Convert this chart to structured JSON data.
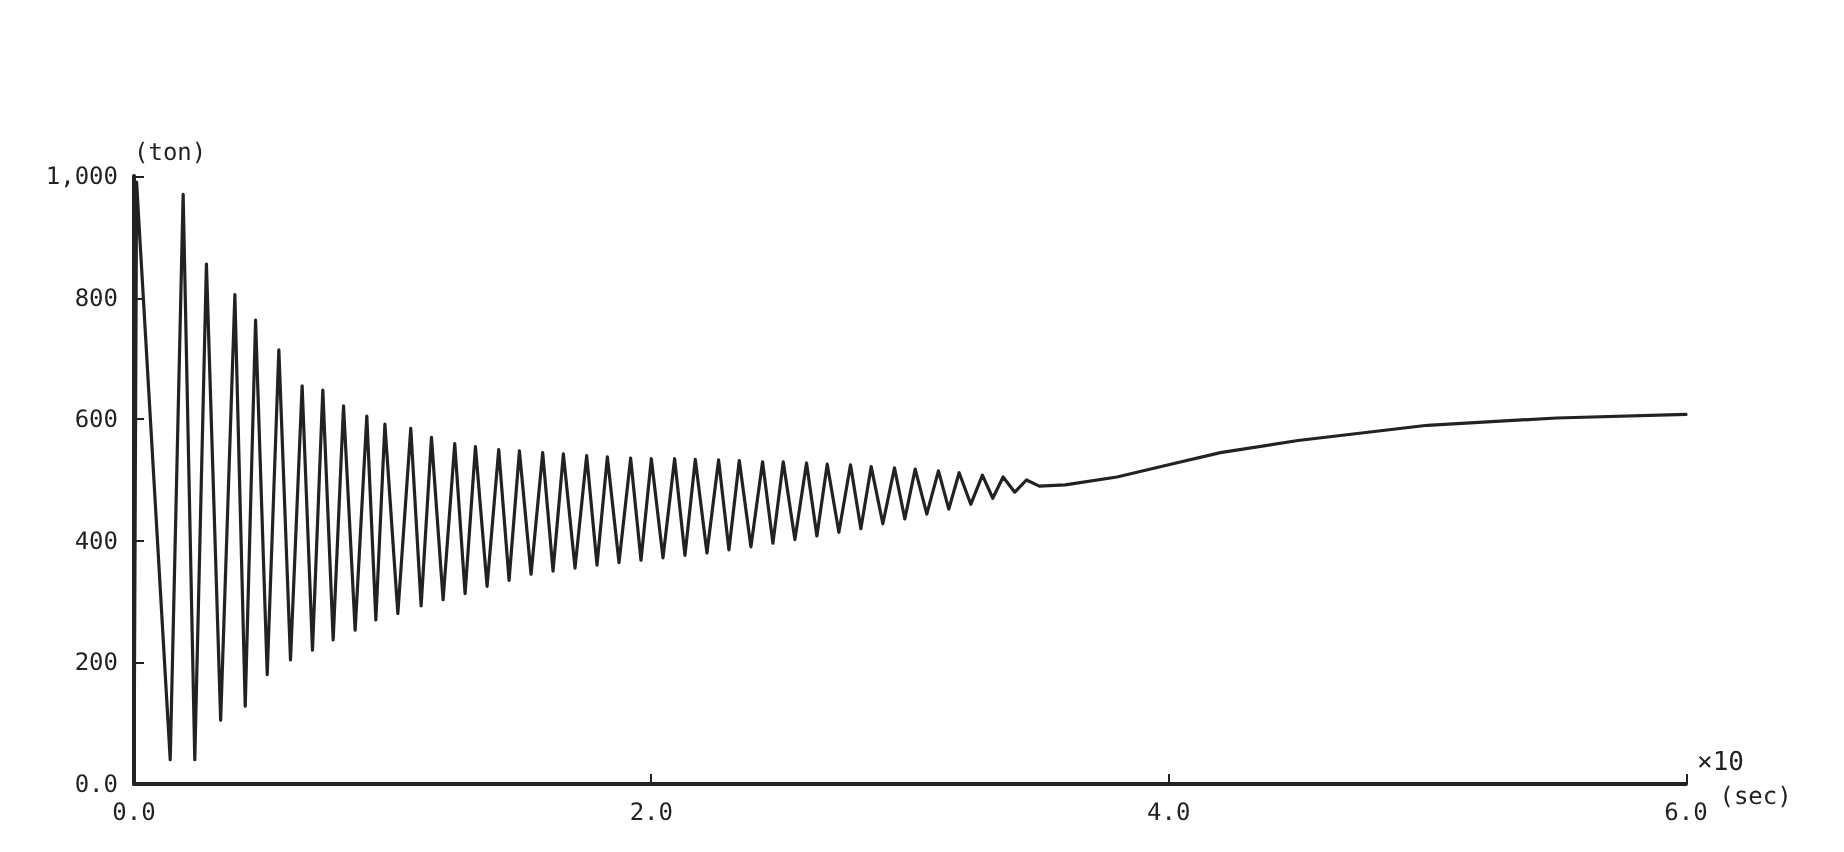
{
  "chart_data": {
    "type": "line",
    "xlabel": "(sec)",
    "ylabel": "(ton)",
    "annotations": [
      "×10"
    ],
    "xlim": [
      0,
      6
    ],
    "xticks": [
      {
        "value": 0,
        "label": "0.0"
      },
      {
        "value": 2,
        "label": "2.0"
      },
      {
        "value": 4,
        "label": "4.0"
      },
      {
        "value": 6,
        "label": "6.0"
      }
    ],
    "ylim": [
      0,
      1000
    ],
    "yticks": [
      {
        "value": 0,
        "label": "0.0"
      },
      200,
      400,
      600,
      800,
      {
        "value": 1000,
        "label": "1,000"
      }
    ],
    "grid": false,
    "marker": "none",
    "line_style": "solid",
    "series": [
      {
        "color": "#222222",
        "x": [
          0,
          0.01,
          0.14,
          0.19,
          0.235,
          0.28,
          0.335,
          0.39,
          0.43,
          0.47,
          0.515,
          0.56,
          0.605,
          0.65,
          0.69,
          0.73,
          0.77,
          0.81,
          0.855,
          0.9,
          0.935,
          0.97,
          1.02,
          1.07,
          1.11,
          1.15,
          1.195,
          1.24,
          1.28,
          1.32,
          1.365,
          1.41,
          1.45,
          1.49,
          1.535,
          1.58,
          1.62,
          1.66,
          1.705,
          1.75,
          1.79,
          1.83,
          1.875,
          1.92,
          1.96,
          2.0,
          2.045,
          2.09,
          2.13,
          2.17,
          2.215,
          2.26,
          2.3,
          2.34,
          2.385,
          2.43,
          2.47,
          2.51,
          2.555,
          2.6,
          2.64,
          2.68,
          2.725,
          2.77,
          2.81,
          2.85,
          2.895,
          2.94,
          2.98,
          3.02,
          3.065,
          3.11,
          3.15,
          3.19,
          3.235,
          3.28,
          3.32,
          3.36,
          3.405,
          3.45,
          3.5,
          3.6,
          3.8,
          4.0,
          4.2,
          4.5,
          5.0,
          5.5,
          6.0
        ],
        "values": [
          0,
          990,
          40,
          970,
          40,
          855,
          105,
          805,
          128,
          763,
          180,
          714,
          204,
          655,
          220,
          648,
          237,
          622,
          253,
          605,
          270,
          592,
          280,
          585,
          293,
          570,
          303,
          560,
          313,
          555,
          325,
          550,
          335,
          548,
          345,
          545,
          350,
          543,
          355,
          540,
          360,
          538,
          364,
          536,
          368,
          535,
          372,
          535,
          376,
          534,
          380,
          533,
          385,
          532,
          390,
          530,
          396,
          530,
          402,
          528,
          408,
          526,
          414,
          525,
          420,
          522,
          428,
          520,
          436,
          518,
          444,
          515,
          452,
          512,
          460,
          508,
          470,
          505,
          480,
          500,
          490,
          492,
          505,
          525,
          545,
          565,
          590,
          602,
          608
        ]
      }
    ]
  }
}
